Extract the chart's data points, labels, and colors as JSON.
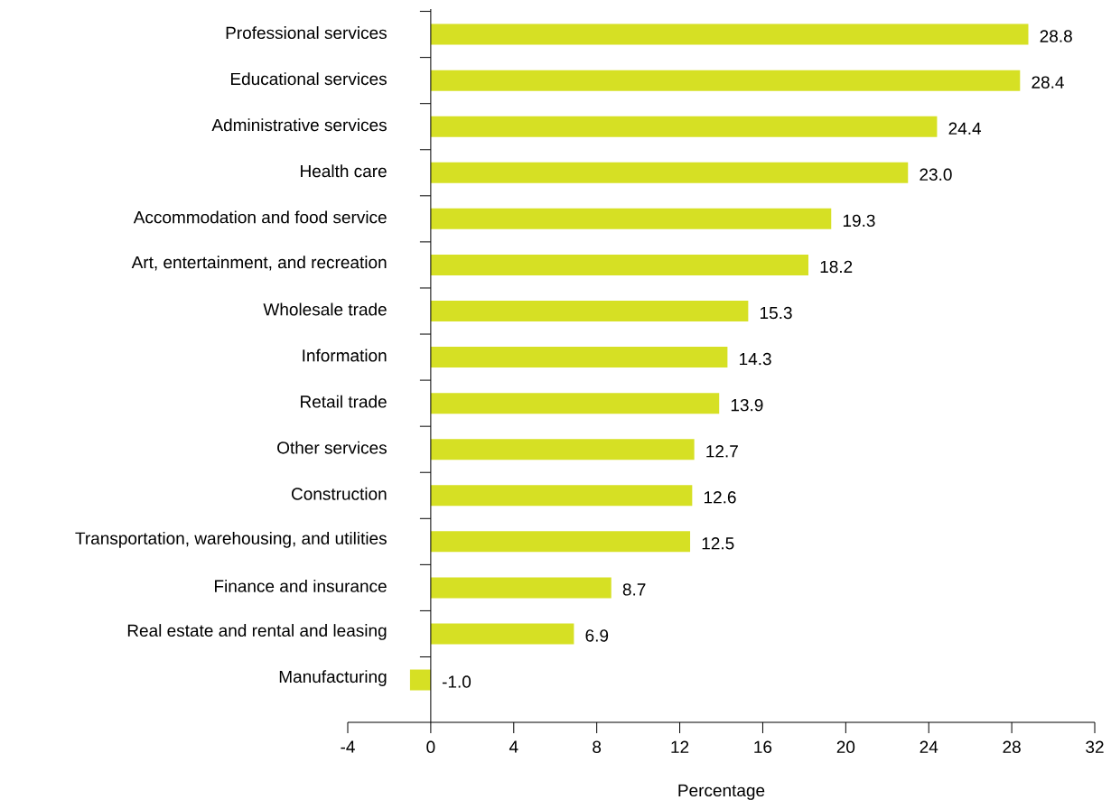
{
  "chart_data": {
    "type": "bar",
    "orientation": "horizontal",
    "xlabel": "Percentage",
    "categories": [
      "Professional services",
      "Educational services",
      "Administrative services",
      "Health care",
      "Accommodation and food service",
      "Art, entertainment, and recreation",
      "Wholesale trade",
      "Information",
      "Retail trade",
      "Other services",
      "Construction",
      "Transportation, warehousing, and utilities",
      "Finance and insurance",
      "Real estate and rental and leasing",
      "Manufacturing"
    ],
    "values": [
      28.8,
      28.4,
      24.4,
      23.0,
      19.3,
      18.2,
      15.3,
      14.3,
      13.9,
      12.7,
      12.6,
      12.5,
      8.7,
      6.9,
      -1.0
    ],
    "value_labels": [
      "28.8",
      "28.4",
      "24.4",
      "23.0",
      "19.3",
      "18.2",
      "15.3",
      "14.3",
      "13.9",
      "12.7",
      "12.6",
      "12.5",
      "8.7",
      "6.9",
      "-1.0"
    ],
    "color": "#d6e024",
    "xlim": [
      -4,
      32
    ],
    "xticks": [
      -4,
      0,
      4,
      8,
      12,
      16,
      20,
      24,
      28,
      32
    ],
    "grid": false
  }
}
